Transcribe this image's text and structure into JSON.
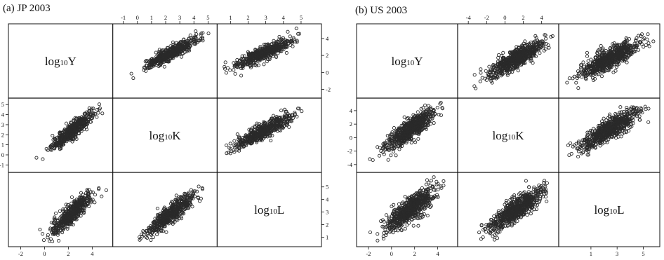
{
  "chart_data": [
    {
      "type": "scatter",
      "title": "(a) JP 2003",
      "variables": [
        {
          "main": "log",
          "sub": "10",
          "suffix": "Y"
        },
        {
          "main": "log",
          "sub": "10",
          "suffix": "K"
        },
        {
          "main": "log",
          "sub": "10",
          "suffix": "L"
        }
      ],
      "ranges": [
        [
          -2.5,
          5.2
        ],
        [
          -1.3,
          5.2
        ],
        [
          0.6,
          5.8
        ]
      ],
      "ticks": [
        [
          -2,
          0,
          2,
          4
        ],
        [
          -1,
          0,
          1,
          2,
          3,
          4,
          5
        ],
        [
          1,
          2,
          3,
          4,
          5
        ]
      ],
      "ticks_top_col1": [
        -1,
        0,
        1,
        2,
        3,
        4,
        5
      ],
      "ticks_top_col2": [
        1,
        2,
        3,
        4,
        5
      ],
      "ticks_right_row0": [
        -2,
        0,
        2,
        4
      ],
      "ticks_right_row2": [
        1,
        2,
        3,
        4,
        5
      ],
      "ticks_left_row1": [
        -1,
        0,
        1,
        2,
        3,
        4,
        5
      ],
      "ticks_bottom_col0": [
        -2,
        0,
        2,
        4
      ],
      "grid": false,
      "point_counts": 520,
      "clouds": {
        "Y_K": {
          "mean": [
            2.3,
            2.4
          ],
          "sd": [
            0.85,
            0.9
          ],
          "r": 0.9
        },
        "Y_L": {
          "mean": [
            2.3,
            2.9
          ],
          "sd": [
            0.85,
            0.85
          ],
          "r": 0.88
        },
        "K_L": {
          "mean": [
            2.4,
            2.9
          ],
          "sd": [
            0.9,
            0.85
          ],
          "r": 0.9
        }
      }
    },
    {
      "type": "scatter",
      "title": "(b) US 2003",
      "variables": [
        {
          "main": "log",
          "sub": "10",
          "suffix": "Y"
        },
        {
          "main": "log",
          "sub": "10",
          "suffix": "K"
        },
        {
          "main": "log",
          "sub": "10",
          "suffix": "L"
        }
      ],
      "ranges": [
        [
          -2.5,
          5.2
        ],
        [
          -4.5,
          5.2
        ],
        [
          -1.0,
          5.8
        ]
      ],
      "ticks": [
        [
          -2,
          0,
          2,
          4
        ],
        [
          -4,
          -2,
          0,
          2,
          4
        ],
        [
          1,
          3,
          5
        ]
      ],
      "ticks_top_col1": [
        -4,
        -2,
        0,
        2,
        4
      ],
      "ticks_top_col2": [],
      "ticks_right_row0": [],
      "ticks_right_row2": [],
      "ticks_left_row1": [
        -4,
        -2,
        0,
        2,
        4
      ],
      "ticks_bottom_col0": [
        -2,
        0,
        2,
        4
      ],
      "ticks_bottom_col2": [
        1,
        3,
        5
      ],
      "grid": false,
      "point_counts": 700,
      "clouds": {
        "Y_K": {
          "mean": [
            1.6,
            1.2
          ],
          "sd": [
            1.05,
            1.45
          ],
          "r": 0.85
        },
        "Y_L": {
          "mean": [
            1.6,
            2.4
          ],
          "sd": [
            1.05,
            1.1
          ],
          "r": 0.82
        },
        "K_L": {
          "mean": [
            1.2,
            2.4
          ],
          "sd": [
            1.45,
            1.1
          ],
          "r": 0.86
        }
      }
    }
  ]
}
